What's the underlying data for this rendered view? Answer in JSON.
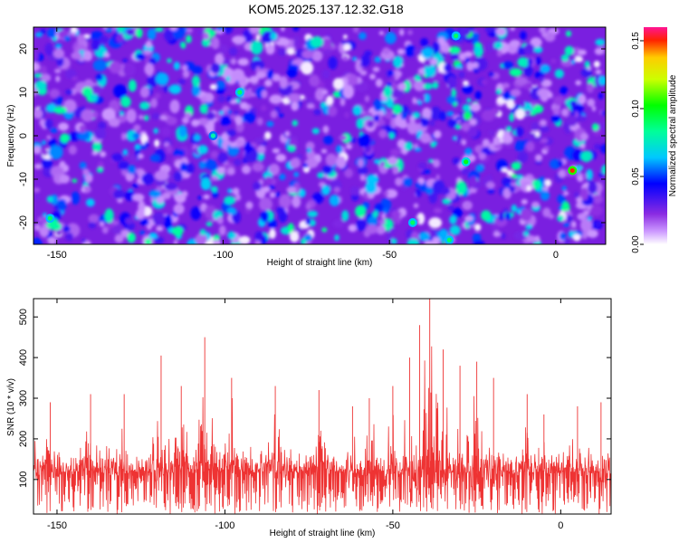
{
  "title": "KOM5.2025.137.12.32.G18",
  "chart_data": [
    {
      "type": "heatmap",
      "xlabel": "Height of straight line (km)",
      "ylabel": "Frequency (Hz)",
      "xlim": [
        -157,
        15
      ],
      "ylim": [
        -25,
        25
      ],
      "x_ticks": [
        -150,
        -100,
        -50,
        0
      ],
      "y_ticks": [
        -20,
        -10,
        0,
        10,
        20
      ],
      "colorbar": {
        "label": "Normalized spectral amplitude",
        "range": [
          0.0,
          0.16
        ],
        "ticks": [
          "0.00",
          "0.05",
          "0.10",
          "0.15"
        ],
        "colormap": [
          "#ffffff",
          "#8a2be2",
          "#0000ff",
          "#00ffff",
          "#00ff00",
          "#ffff00",
          "#ff0000",
          "#ff1493"
        ]
      },
      "note": "dense speckled field, mostly blue/purple (0.01-0.06) with scattered green peaks; a slanted band of higher values near -30 km; strongest peak ~0.15 near (5 km, -8 Hz)",
      "hotspots": [
        {
          "x": 5,
          "y": -8,
          "value": 0.15
        },
        {
          "x": -30,
          "y": 23,
          "value": 0.09
        },
        {
          "x": -27,
          "y": -6,
          "value": 0.1
        },
        {
          "x": -43,
          "y": -20,
          "value": 0.09
        },
        {
          "x": -32,
          "y": -24,
          "value": 0.09
        },
        {
          "x": -95,
          "y": 10,
          "value": 0.09
        },
        {
          "x": -103,
          "y": 0,
          "value": 0.08
        },
        {
          "x": -152,
          "y": -19,
          "value": 0.09
        }
      ]
    },
    {
      "type": "line",
      "xlabel": "Height of straight line (km)",
      "ylabel": "SNR (10 * v/v)",
      "xlim": [
        -157,
        15
      ],
      "ylim": [
        15,
        545
      ],
      "x_ticks": [
        -150,
        -100,
        -50,
        0
      ],
      "y_ticks": [
        100,
        200,
        300,
        400,
        500
      ],
      "color": "#ee3333",
      "note": "noisy red SNR trace with baseline ~100-150; local peaks listed below",
      "peaks": [
        {
          "x": -157,
          "y": 240
        },
        {
          "x": -152,
          "y": 290
        },
        {
          "x": -140,
          "y": 310
        },
        {
          "x": -130,
          "y": 310
        },
        {
          "x": -119,
          "y": 405
        },
        {
          "x": -113,
          "y": 330
        },
        {
          "x": -106,
          "y": 450
        },
        {
          "x": -98,
          "y": 350
        },
        {
          "x": -85,
          "y": 330
        },
        {
          "x": -72,
          "y": 320
        },
        {
          "x": -62,
          "y": 280
        },
        {
          "x": -57,
          "y": 300
        },
        {
          "x": -50,
          "y": 330
        },
        {
          "x": -45,
          "y": 400
        },
        {
          "x": -42,
          "y": 480
        },
        {
          "x": -39,
          "y": 545
        },
        {
          "x": -35,
          "y": 420
        },
        {
          "x": -30,
          "y": 380
        },
        {
          "x": -25,
          "y": 390
        },
        {
          "x": -20,
          "y": 350
        },
        {
          "x": -10,
          "y": 310
        },
        {
          "x": -5,
          "y": 260
        },
        {
          "x": 5,
          "y": 280
        },
        {
          "x": 12,
          "y": 290
        }
      ],
      "baseline_min": 15,
      "baseline_mean": 120
    }
  ]
}
